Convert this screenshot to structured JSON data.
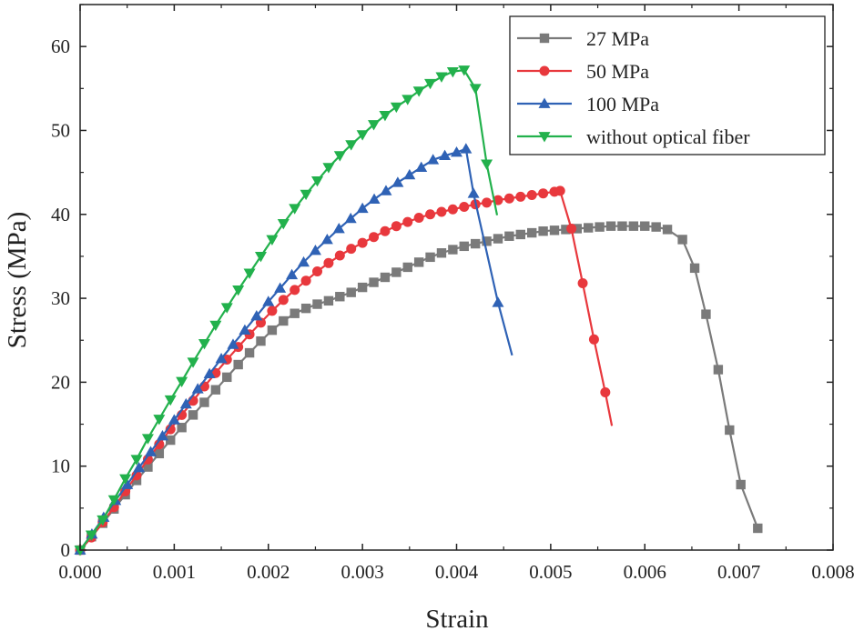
{
  "chart_data": {
    "type": "line",
    "xlabel": "Strain",
    "ylabel": "Stress (MPa)",
    "xlim": [
      0,
      0.008
    ],
    "ylim": [
      0,
      65
    ],
    "xticks": [
      "0.000",
      "0.001",
      "0.002",
      "0.003",
      "0.004",
      "0.005",
      "0.006",
      "0.007",
      "0.008"
    ],
    "yticks": [
      "0",
      "10",
      "20",
      "30",
      "40",
      "50",
      "60"
    ],
    "grid": false,
    "legend_position": "top-right",
    "series": [
      {
        "name": "27 MPa",
        "color": "#7a7a7a",
        "marker": "square",
        "x": [
          0,
          0.00012,
          0.00024,
          0.00036,
          0.00048,
          0.0006,
          0.00072,
          0.00084,
          0.00096,
          0.00108,
          0.0012,
          0.00132,
          0.00144,
          0.00156,
          0.00168,
          0.0018,
          0.00192,
          0.00204,
          0.00216,
          0.00228,
          0.0024,
          0.00252,
          0.00264,
          0.00276,
          0.00288,
          0.003,
          0.00312,
          0.00324,
          0.00336,
          0.00348,
          0.0036,
          0.00372,
          0.00384,
          0.00396,
          0.00408,
          0.0042,
          0.00432,
          0.00444,
          0.00456,
          0.00468,
          0.0048,
          0.00492,
          0.00504,
          0.00516,
          0.00528,
          0.0054,
          0.00552,
          0.00564,
          0.00576,
          0.00588,
          0.006,
          0.00612,
          0.00624,
          0.0064,
          0.00653,
          0.00665,
          0.00678,
          0.0069,
          0.00702,
          0.0072
        ],
        "y": [
          0,
          1.6,
          3.2,
          4.9,
          6.6,
          8.3,
          9.9,
          11.5,
          13.1,
          14.6,
          16.1,
          17.6,
          19.1,
          20.6,
          22.1,
          23.5,
          24.9,
          26.2,
          27.3,
          28.2,
          28.8,
          29.3,
          29.7,
          30.2,
          30.7,
          31.3,
          31.9,
          32.5,
          33.1,
          33.7,
          34.3,
          34.9,
          35.4,
          35.8,
          36.2,
          36.5,
          36.8,
          37.1,
          37.4,
          37.6,
          37.8,
          38.0,
          38.1,
          38.2,
          38.3,
          38.4,
          38.5,
          38.6,
          38.6,
          38.6,
          38.6,
          38.5,
          38.2,
          37.0,
          33.6,
          28.1,
          21.5,
          14.3,
          7.8,
          2.6
        ]
      },
      {
        "name": "50 MPa",
        "color": "#e8383d",
        "marker": "circle",
        "x": [
          0,
          0.00012,
          0.00024,
          0.00036,
          0.00048,
          0.0006,
          0.00072,
          0.00084,
          0.00096,
          0.00108,
          0.0012,
          0.00132,
          0.00144,
          0.00156,
          0.00168,
          0.0018,
          0.00192,
          0.00204,
          0.00216,
          0.00228,
          0.0024,
          0.00252,
          0.00264,
          0.00276,
          0.00288,
          0.003,
          0.00312,
          0.00324,
          0.00336,
          0.00348,
          0.0036,
          0.00372,
          0.00384,
          0.00396,
          0.00408,
          0.0042,
          0.00432,
          0.00444,
          0.00456,
          0.00468,
          0.0048,
          0.00492,
          0.00504,
          0.0051,
          0.00522,
          0.00534,
          0.00546,
          0.00558,
          0.00565
        ],
        "y": [
          0,
          1.5,
          3.3,
          5.1,
          7.0,
          8.9,
          10.8,
          12.6,
          14.4,
          16.1,
          17.8,
          19.5,
          21.1,
          22.7,
          24.2,
          25.7,
          27.1,
          28.5,
          29.8,
          31.0,
          32.1,
          33.2,
          34.2,
          35.1,
          35.9,
          36.6,
          37.3,
          38.0,
          38.6,
          39.1,
          39.6,
          40.0,
          40.3,
          40.6,
          40.9,
          41.2,
          41.4,
          41.7,
          41.9,
          42.1,
          42.3,
          42.5,
          42.7,
          42.8,
          38.3,
          31.8,
          25.1,
          18.8,
          14.8
        ]
      },
      {
        "name": "100 MPa",
        "color": "#2f62b5",
        "marker": "triangle-up",
        "x": [
          0,
          0.000125,
          0.00025,
          0.000375,
          0.0005,
          0.000625,
          0.00075,
          0.000875,
          0.001,
          0.001125,
          0.00125,
          0.001375,
          0.0015,
          0.001625,
          0.00175,
          0.001875,
          0.002,
          0.002125,
          0.00225,
          0.002375,
          0.0025,
          0.002625,
          0.00275,
          0.002875,
          0.003,
          0.003125,
          0.00325,
          0.003375,
          0.0035,
          0.003625,
          0.00375,
          0.003875,
          0.004,
          0.0041,
          0.00418,
          0.00444,
          0.00459
        ],
        "y": [
          0,
          1.9,
          3.9,
          5.9,
          7.8,
          9.8,
          11.7,
          13.6,
          15.5,
          17.4,
          19.2,
          21.0,
          22.8,
          24.5,
          26.2,
          27.9,
          29.6,
          31.2,
          32.8,
          34.3,
          35.7,
          37.0,
          38.3,
          39.5,
          40.7,
          41.8,
          42.8,
          43.8,
          44.7,
          45.6,
          46.5,
          47.0,
          47.4,
          47.8,
          42.5,
          29.5,
          23.2
        ]
      },
      {
        "name": "without optical fiber",
        "color": "#22b14c",
        "marker": "triangle-down",
        "x": [
          0,
          0.00012,
          0.00024,
          0.00036,
          0.00048,
          0.0006,
          0.00072,
          0.00084,
          0.00096,
          0.00108,
          0.0012,
          0.00132,
          0.00144,
          0.00156,
          0.00168,
          0.0018,
          0.00192,
          0.00204,
          0.00216,
          0.00228,
          0.0024,
          0.00252,
          0.00264,
          0.00276,
          0.00288,
          0.003,
          0.00312,
          0.00324,
          0.00336,
          0.00348,
          0.0036,
          0.00372,
          0.00384,
          0.00396,
          0.00408,
          0.0042,
          0.00432,
          0.00443
        ],
        "y": [
          0,
          1.8,
          3.6,
          6.0,
          8.5,
          10.8,
          13.3,
          15.6,
          17.9,
          20.1,
          22.4,
          24.6,
          26.8,
          28.9,
          31.0,
          33.0,
          35.0,
          37.0,
          38.9,
          40.7,
          42.4,
          44.0,
          45.6,
          47.0,
          48.3,
          49.5,
          50.7,
          51.8,
          52.8,
          53.7,
          54.7,
          55.6,
          56.4,
          57.0,
          57.2,
          55.0,
          46.0,
          39.9
        ]
      }
    ]
  }
}
